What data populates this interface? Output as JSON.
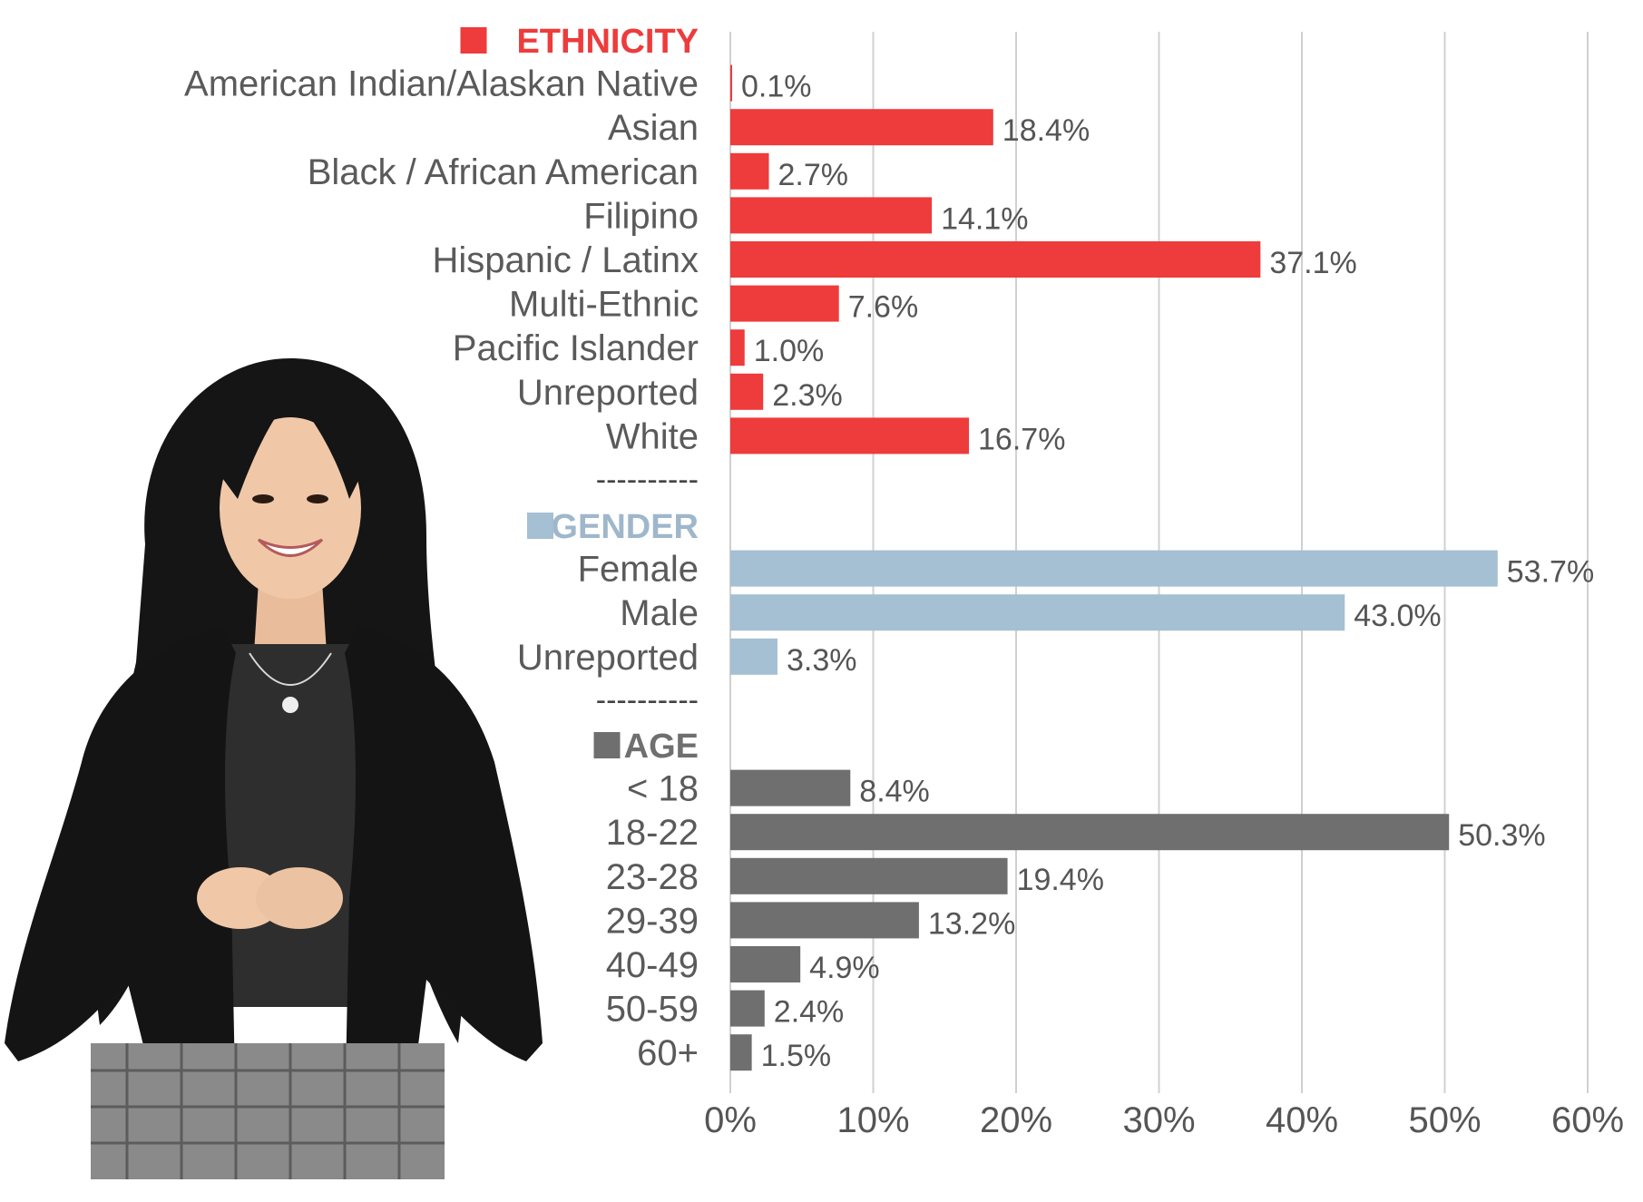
{
  "chart_data": {
    "type": "bar",
    "orientation": "horizontal",
    "x_ticks": [
      "0%",
      "10%",
      "20%",
      "30%",
      "40%",
      "50%",
      "60%"
    ],
    "xlim": [
      0,
      60
    ],
    "grid": true,
    "separator": "----------",
    "sections": [
      {
        "name": "ETHNICITY",
        "color": "#ee3b3b",
        "label_color": "#ee3b3b",
        "categories": [
          "American Indian/Alaskan Native",
          "Asian",
          "Black / African American",
          "Filipino",
          "Hispanic / Latinx",
          "Multi-Ethnic",
          "Pacific Islander",
          "Unreported",
          "White"
        ],
        "values": [
          0.1,
          18.4,
          2.7,
          14.1,
          37.1,
          7.6,
          1.0,
          2.3,
          16.7
        ],
        "value_labels": [
          "0.1%",
          "18.4%",
          "2.7%",
          "14.1%",
          "37.1%",
          "7.6%",
          "1.0%",
          "2.3%",
          "16.7%"
        ]
      },
      {
        "name": "GENDER",
        "color": "#a5bfd3",
        "label_color": "#9fb7cb",
        "categories": [
          "Female",
          "Male",
          "Unreported"
        ],
        "values": [
          53.7,
          43.0,
          3.3
        ],
        "value_labels": [
          "53.7%",
          "43.0%",
          "3.3%"
        ]
      },
      {
        "name": "AGE",
        "color": "#6f6f6f",
        "label_color": "#6f6f6f",
        "categories": [
          "< 18",
          "18-22",
          "23-28",
          "29-39",
          "40-49",
          "50-59",
          "60+"
        ],
        "values": [
          8.4,
          50.3,
          19.4,
          13.2,
          4.9,
          2.4,
          1.5
        ],
        "value_labels": [
          "8.4%",
          "50.3%",
          "19.4%",
          "13.2%",
          "4.9%",
          "2.4%",
          "1.5%"
        ]
      }
    ]
  },
  "photo": {
    "icon": "smiling-student-photo",
    "hair_color": "#151515",
    "skin_color": "#f0c8a8",
    "jacket_color": "#141414",
    "shirt_color": "#2e2e2e"
  }
}
